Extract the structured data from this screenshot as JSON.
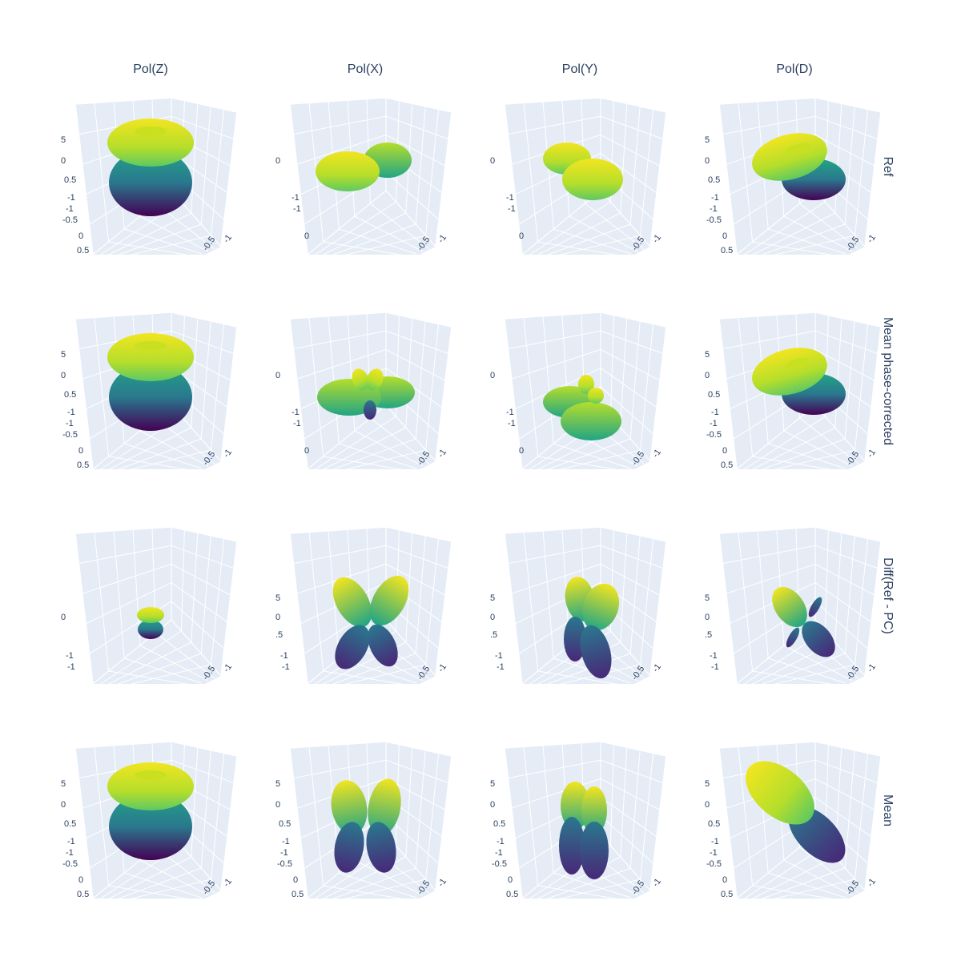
{
  "chart_data": {
    "type": "surface",
    "description_kind": "grid of 3D polarization-pattern surfaces",
    "colorscale": "Viridis",
    "column_titles": [
      "Pol(Z)",
      "Pol(X)",
      "Pol(Y)",
      "Pol(D)"
    ],
    "row_titles": [
      "Ref",
      "Mean phase-corrected",
      "Diff(Ref - PC)",
      "Mean"
    ],
    "scene_background": "#e5ecf6",
    "gridline_color": "#ffffff",
    "tick_values_visible": [
      "-1",
      "-0.5",
      "0",
      "0.5",
      "1"
    ],
    "cells": [
      [
        {
          "row": "Ref",
          "col": "Pol(Z)",
          "shape": "dipole-z"
        },
        {
          "row": "Ref",
          "col": "Pol(X)",
          "shape": "dipole-x"
        },
        {
          "row": "Ref",
          "col": "Pol(Y)",
          "shape": "dipole-y"
        },
        {
          "row": "Ref",
          "col": "Pol(D)",
          "shape": "dipole-d"
        }
      ],
      [
        {
          "row": "Mean phase-corrected",
          "col": "Pol(Z)",
          "shape": "dipole-z"
        },
        {
          "row": "Mean phase-corrected",
          "col": "Pol(X)",
          "shape": "dipole-x-lobed"
        },
        {
          "row": "Mean phase-corrected",
          "col": "Pol(Y)",
          "shape": "dipole-y-lobed"
        },
        {
          "row": "Mean phase-corrected",
          "col": "Pol(D)",
          "shape": "dipole-d"
        }
      ],
      [
        {
          "row": "Diff(Ref - PC)",
          "col": "Pol(Z)",
          "shape": "small-dipole-z"
        },
        {
          "row": "Diff(Ref - PC)",
          "col": "Pol(X)",
          "shape": "four-lobe-x"
        },
        {
          "row": "Diff(Ref - PC)",
          "col": "Pol(Y)",
          "shape": "four-lobe-y"
        },
        {
          "row": "Diff(Ref - PC)",
          "col": "Pol(D)",
          "shape": "four-lobe-d"
        }
      ],
      [
        {
          "row": "Mean",
          "col": "Pol(Z)",
          "shape": "dipole-z"
        },
        {
          "row": "Mean",
          "col": "Pol(X)",
          "shape": "butterfly-x"
        },
        {
          "row": "Mean",
          "col": "Pol(Y)",
          "shape": "butterfly-y"
        },
        {
          "row": "Mean",
          "col": "Pol(D)",
          "shape": "elongated-d"
        }
      ]
    ]
  }
}
